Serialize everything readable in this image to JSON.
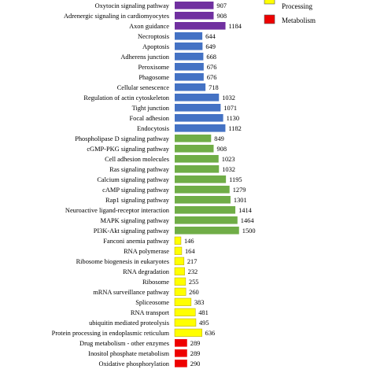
{
  "chart_data": {
    "type": "bar",
    "orientation": "horizontal",
    "categories": [
      "Oxytocin signaling pathway",
      "Adrenergic signaling in cardiomyocytes",
      "Axon guidance",
      "Necroptosis",
      "Apoptosis",
      "Adherens junction",
      "Peroxisome",
      "Phagosome",
      "Cellular senescence",
      "Regulation of actin cytoskeleton",
      "Tight junction",
      "Focal adhesion",
      "Endocytosis",
      "Phospholipase D signaling pathway",
      "cGMP-PKG signaling pathway",
      "Cell adhesion molecules",
      "Ras signaling pathway",
      "Calcium signaling pathway",
      "cAMP signaling pathway",
      "Rap1 signaling pathway",
      "Neuroactive ligand-receptor interaction",
      "MAPK signaling pathway",
      "PI3K-Akt signaling pathway",
      "Fanconi anemia pathway",
      "RNA polymerase",
      "Ribosome biogenesis in eukaryotes",
      "RNA degradation",
      "Ribosome",
      "mRNA surveillance pathway",
      "Spliceosome",
      "RNA transport",
      "ubiquitin mediated proteolysis",
      "Protein processing in endoplasmic reticulum",
      "Drug metabolism - other enzymes",
      "Inositol phosphate metabolism",
      "Oxidative phosphorylation"
    ],
    "values": [
      907,
      908,
      1184,
      644,
      649,
      668,
      676,
      676,
      718,
      1032,
      1071,
      1130,
      1182,
      849,
      908,
      1023,
      1032,
      1195,
      1279,
      1301,
      1414,
      1464,
      1500,
      146,
      164,
      217,
      232,
      255,
      260,
      383,
      481,
      495,
      636,
      289,
      289,
      290
    ],
    "value_labels": [
      "907",
      "908",
      "1184",
      "644",
      "649",
      "668",
      "676",
      "676",
      "718",
      "1032",
      "1071",
      "1130",
      "1182",
      "849",
      "908",
      "1023",
      "1032",
      "1195",
      "1279",
      "1301",
      "1414",
      "1464",
      "1500",
      "146",
      "164",
      "217",
      "232",
      "255",
      "260",
      "383",
      "481",
      "495",
      "636",
      "289",
      "289",
      "290"
    ],
    "bar_colors": [
      "#7030a0",
      "#7030a0",
      "#7030a0",
      "#4472c4",
      "#4472c4",
      "#4472c4",
      "#4472c4",
      "#4472c4",
      "#4472c4",
      "#4472c4",
      "#4472c4",
      "#4472c4",
      "#4472c4",
      "#70ad47",
      "#70ad47",
      "#70ad47",
      "#70ad47",
      "#70ad47",
      "#70ad47",
      "#70ad47",
      "#70ad47",
      "#70ad47",
      "#70ad47",
      "#ffff00",
      "#ffff00",
      "#ffff00",
      "#ffff00",
      "#ffff00",
      "#ffff00",
      "#ffff00",
      "#ffff00",
      "#ffff00",
      "#ffff00",
      "#ee0000",
      "#ee0000",
      "#ee0000"
    ],
    "bar_outline": "#b0a000",
    "legend": {
      "placement": "top-right",
      "items": [
        {
          "name": "Processing",
          "color": "#ffff00"
        },
        {
          "name": "Metabolism",
          "color": "#ee0000"
        }
      ]
    },
    "xlim": [
      0,
      1550
    ],
    "grid": false
  }
}
